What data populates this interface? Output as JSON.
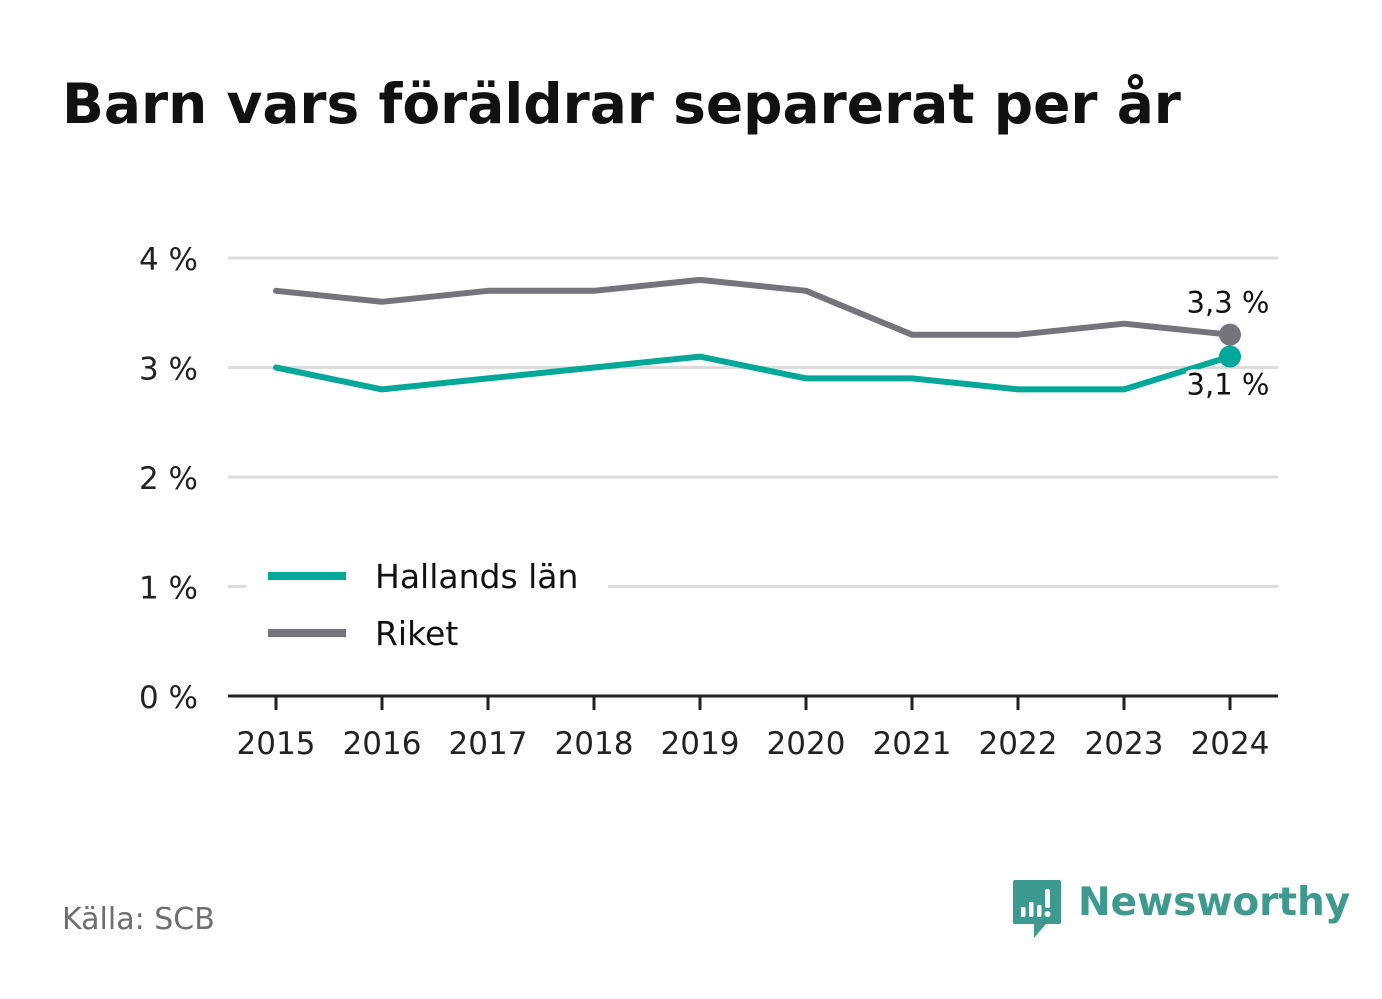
{
  "title": "Barn vars föräldrar separerat per år",
  "source": "Källa: SCB",
  "brand": {
    "name": "Newsworthy",
    "logo_icon": "newsworthy-bar-chart-speech-bubble-icon",
    "color": "#3e9a8f"
  },
  "chart_data": {
    "type": "line",
    "title": "Barn vars föräldrar separerat per år",
    "xlabel": "",
    "ylabel": "",
    "x": [
      "2015",
      "2016",
      "2017",
      "2018",
      "2019",
      "2020",
      "2021",
      "2022",
      "2023",
      "2024"
    ],
    "ylim": [
      0,
      4
    ],
    "y_ticks": [
      {
        "value": 0,
        "label": "0 %"
      },
      {
        "value": 1,
        "label": "1 %"
      },
      {
        "value": 2,
        "label": "2 %"
      },
      {
        "value": 3,
        "label": "3 %"
      },
      {
        "value": 4,
        "label": "4 %"
      }
    ],
    "grid": true,
    "legend_position": "bottom-left",
    "series": [
      {
        "name": "Hallands län",
        "color": "#00a89a",
        "values": [
          3.0,
          2.8,
          2.9,
          3.0,
          3.1,
          2.9,
          2.9,
          2.8,
          2.8,
          3.1
        ],
        "end_label": "3,1 %",
        "end_label_side": "below"
      },
      {
        "name": "Riket",
        "color": "#75747a",
        "values": [
          3.7,
          3.6,
          3.7,
          3.7,
          3.8,
          3.7,
          3.3,
          3.3,
          3.4,
          3.3
        ],
        "end_label": "3,3 %",
        "end_label_side": "above"
      }
    ],
    "colors": {
      "grid": "#dcdcdc",
      "axis": "#222222",
      "tick_text": "#222222",
      "label_text": "#111111"
    }
  }
}
